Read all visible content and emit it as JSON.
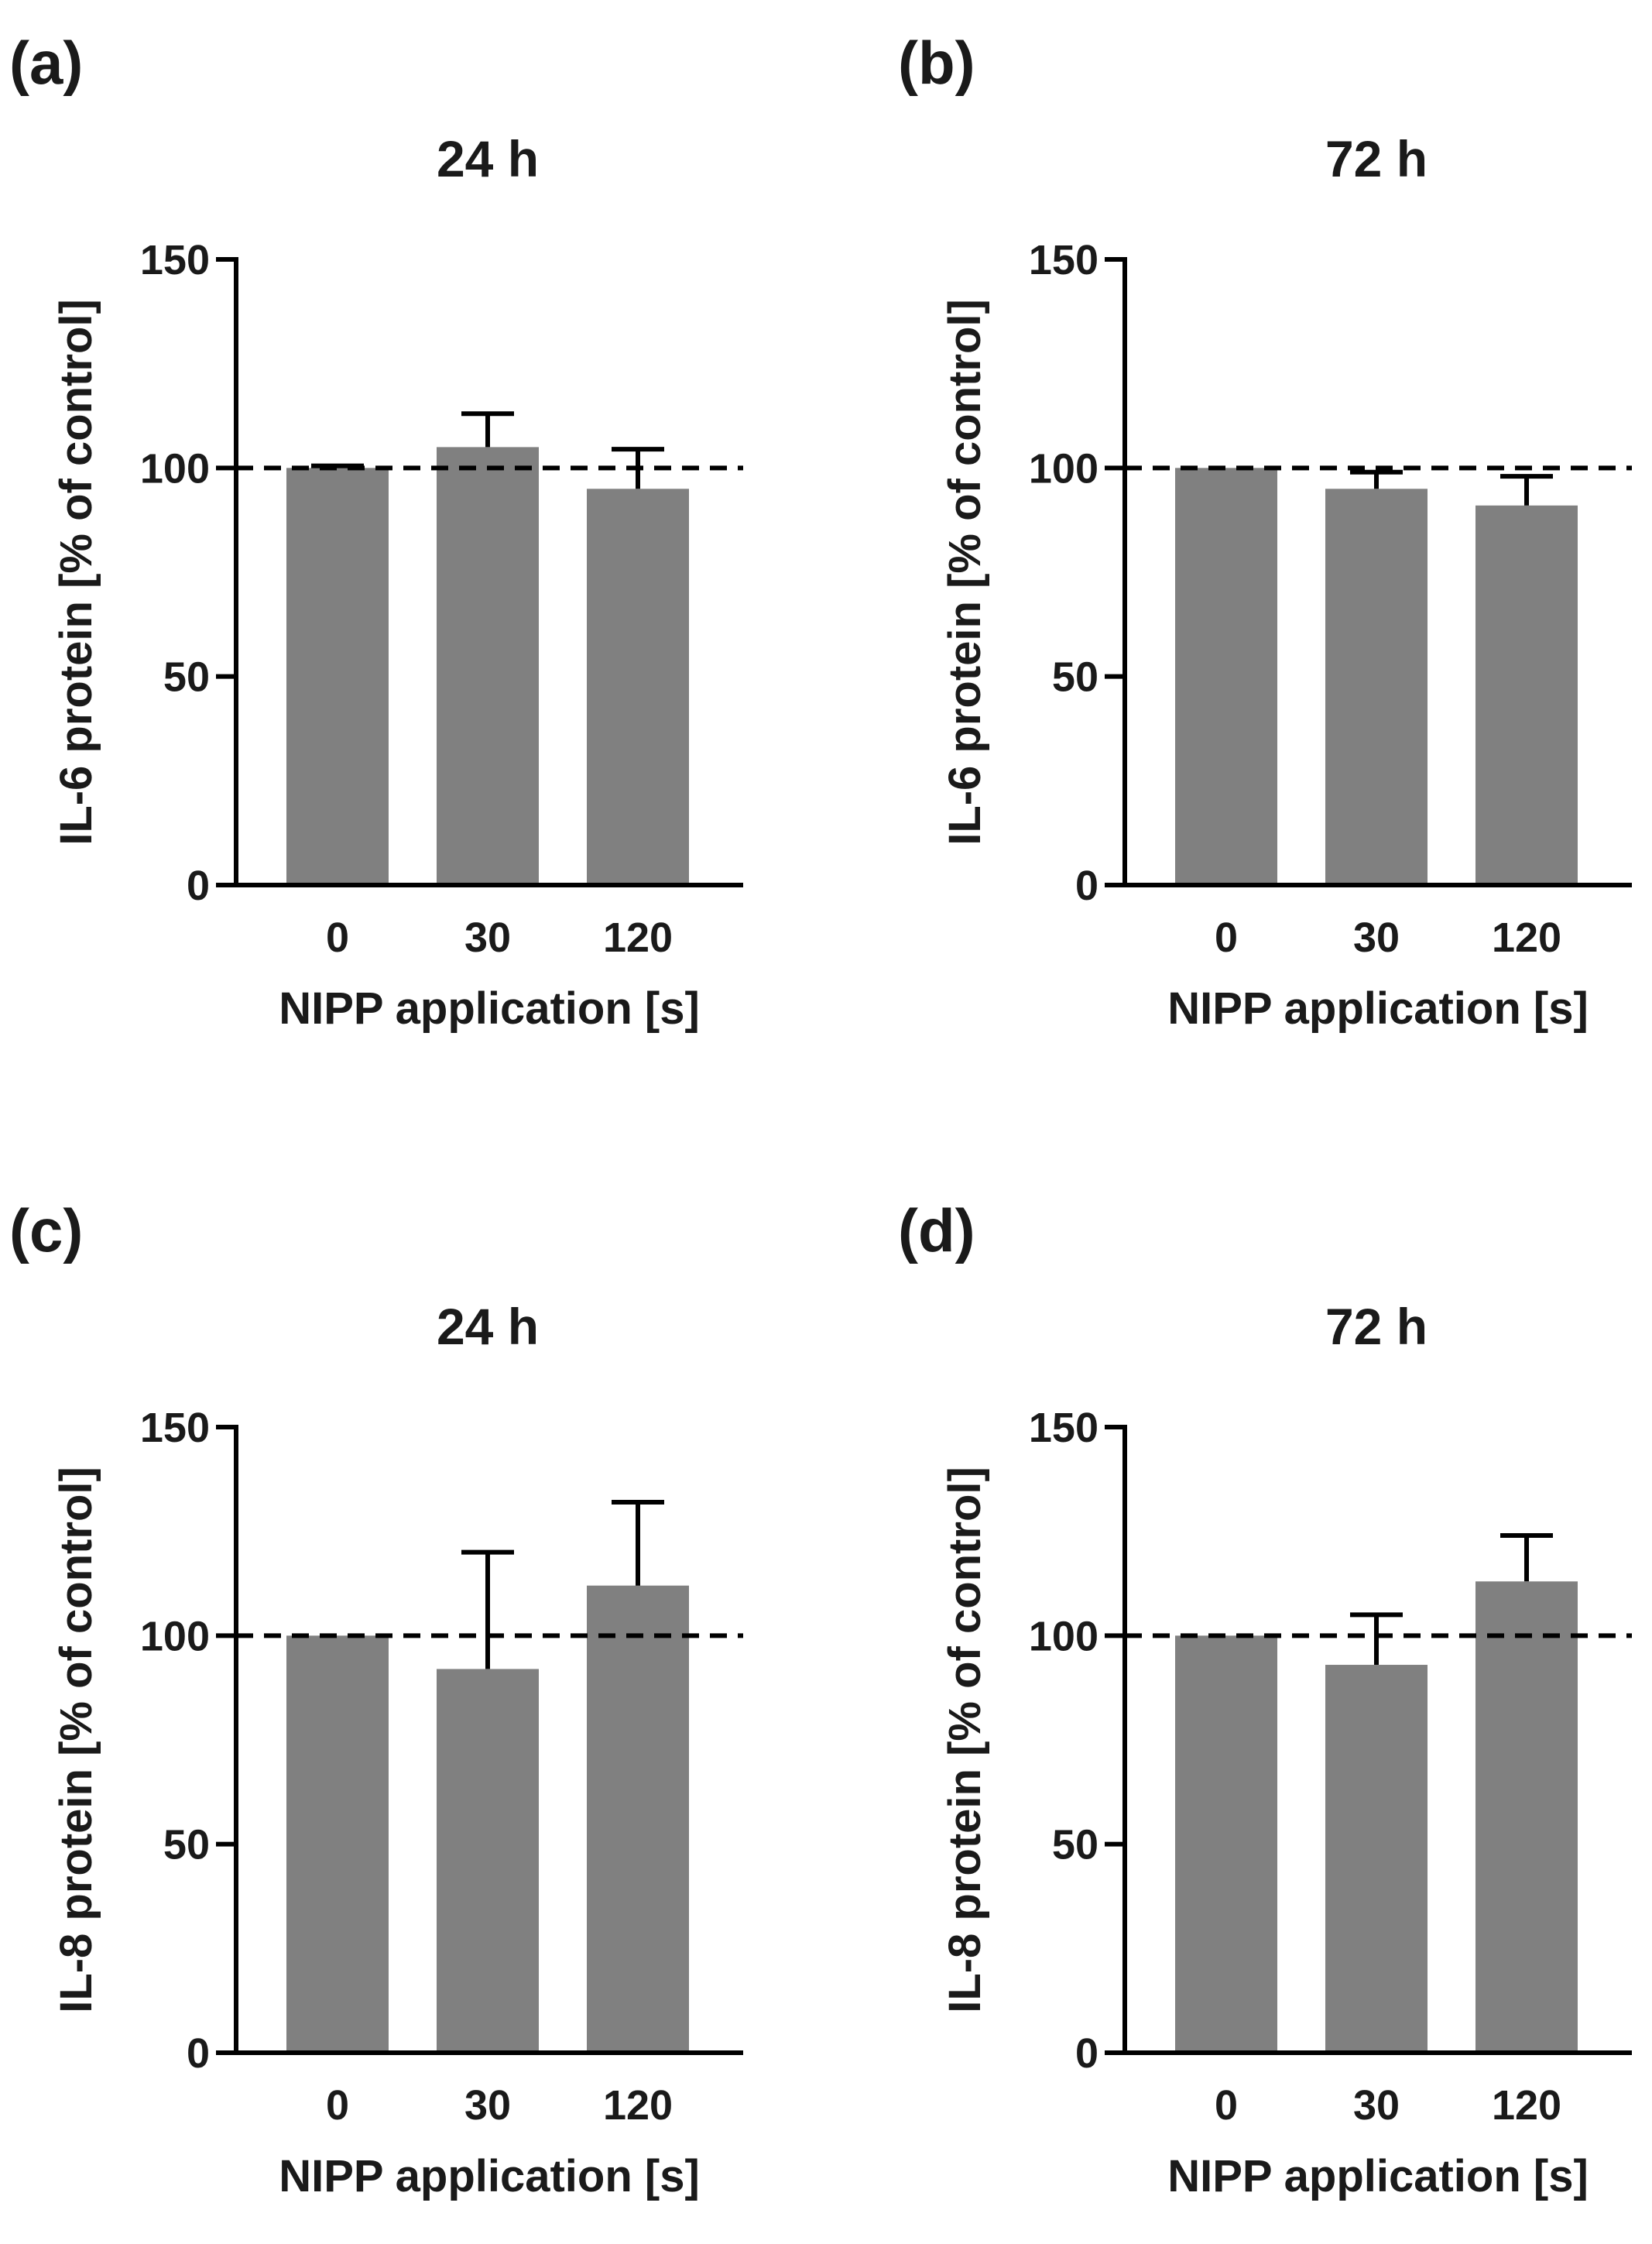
{
  "chart_data": [
    {
      "panel": "(a)",
      "type": "bar",
      "title": "24 h",
      "categories": [
        "0",
        "30",
        "120"
      ],
      "values": [
        100,
        105,
        95
      ],
      "error_plus": [
        0.5,
        8,
        9.5
      ],
      "reference_line": 100,
      "xlabel": "NIPP application [s]",
      "ylabel": "IL-6 protein [% of control]",
      "ylim": [
        0,
        150
      ],
      "yticks": [
        "0",
        "50",
        "100",
        "150"
      ],
      "colors": {
        "bar": "#808080",
        "axis": "#000000"
      }
    },
    {
      "panel": "(b)",
      "type": "bar",
      "title": "72 h",
      "categories": [
        "0",
        "30",
        "120"
      ],
      "values": [
        100,
        95,
        91
      ],
      "error_plus": [
        0,
        4,
        7
      ],
      "reference_line": 100,
      "xlabel": "NIPP application [s]",
      "ylabel": "IL-6 protein [% of control]",
      "ylim": [
        0,
        150
      ],
      "yticks": [
        "0",
        "50",
        "100",
        "150"
      ],
      "colors": {
        "bar": "#808080",
        "axis": "#000000"
      }
    },
    {
      "panel": "(c)",
      "type": "bar",
      "title": "24 h",
      "categories": [
        "0",
        "30",
        "120"
      ],
      "values": [
        100,
        92,
        112
      ],
      "error_plus": [
        0,
        28,
        20
      ],
      "reference_line": 100,
      "xlabel": "NIPP application [s]",
      "ylabel": "IL-8 protein [% of control]",
      "ylim": [
        0,
        150
      ],
      "yticks": [
        "0",
        "50",
        "100",
        "150"
      ],
      "colors": {
        "bar": "#808080",
        "axis": "#000000"
      }
    },
    {
      "panel": "(d)",
      "type": "bar",
      "title": "72 h",
      "categories": [
        "0",
        "30",
        "120"
      ],
      "values": [
        100,
        93,
        113
      ],
      "error_plus": [
        0,
        12,
        11
      ],
      "reference_line": 100,
      "xlabel": "NIPP application [s]",
      "ylabel": "IL-8 protein [% of control]",
      "ylim": [
        0,
        150
      ],
      "yticks": [
        "0",
        "50",
        "100",
        "150"
      ],
      "colors": {
        "bar": "#808080",
        "axis": "#000000"
      }
    }
  ]
}
